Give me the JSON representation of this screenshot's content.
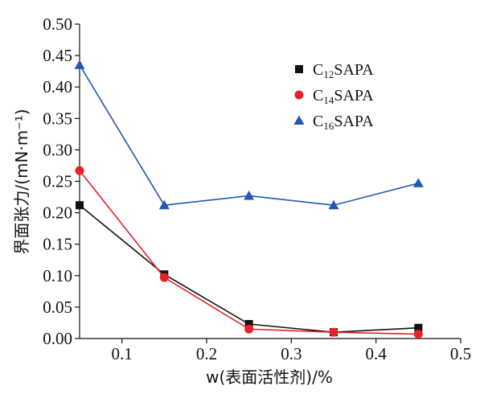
{
  "chart_data": {
    "type": "line",
    "title": "",
    "xlabel": "w(表面活性剂)/%",
    "ylabel": "界面张力/(mN·m⁻¹)",
    "xlim": [
      0.05,
      0.5
    ],
    "ylim": [
      0,
      0.5
    ],
    "xticks": [
      0.1,
      0.2,
      0.3,
      0.4,
      0.5
    ],
    "yticks": [
      0,
      0.05,
      0.1,
      0.15,
      0.2,
      0.25,
      0.3,
      0.35,
      0.4,
      0.45,
      0.5
    ],
    "xtick_labels": [
      "0.1",
      "0.2",
      "0.3",
      "0.4",
      "0.5"
    ],
    "ytick_labels": [
      "0.00",
      "0.05",
      "0.10",
      "0.15",
      "0.20",
      "0.25",
      "0.30",
      "0.35",
      "0.40",
      "0.45",
      "0.50"
    ],
    "grid": false,
    "legend_position": "top-right",
    "x": [
      0.05,
      0.15,
      0.25,
      0.35,
      0.45
    ],
    "series": [
      {
        "name": "C12SAPA",
        "legend": {
          "pre": "C",
          "sub": "12",
          "post": "SAPA"
        },
        "values": [
          0.212,
          0.102,
          0.023,
          0.01,
          0.017
        ],
        "color": "#111111",
        "marker": "square"
      },
      {
        "name": "C14SAPA",
        "legend": {
          "pre": "C",
          "sub": "14",
          "post": "SAPA"
        },
        "values": [
          0.267,
          0.097,
          0.015,
          0.01,
          0.007
        ],
        "color": "#e8202a",
        "marker": "circle"
      },
      {
        "name": "C16SAPA",
        "legend": {
          "pre": "C",
          "sub": "16",
          "post": "SAPA"
        },
        "values": [
          0.435,
          0.212,
          0.227,
          0.212,
          0.247
        ],
        "color": "#2457b5",
        "marker": "triangle"
      }
    ]
  }
}
